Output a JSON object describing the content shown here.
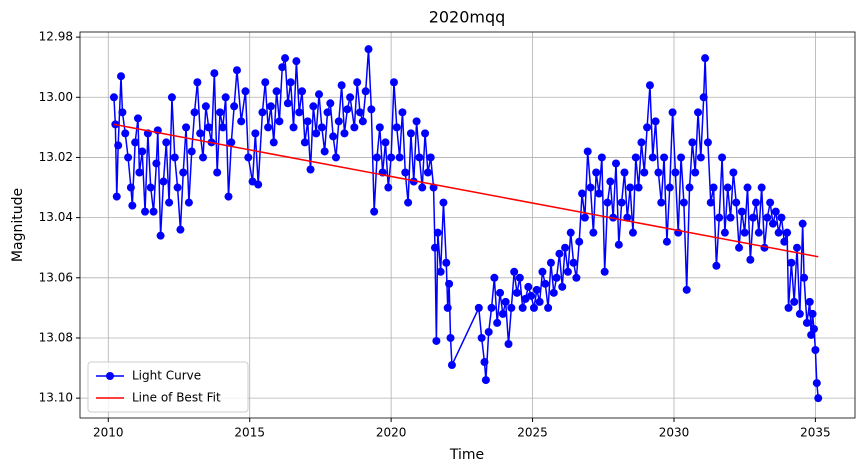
{
  "chart_data": {
    "type": "line",
    "title": "2020mqq",
    "x_label": "Time",
    "y_label": "Magnitude",
    "xlim": [
      2009.0,
      2036.4
    ],
    "xticks": [
      2010,
      2015,
      2020,
      2025,
      2030,
      2035
    ],
    "ylim": [
      13.1066,
      12.9783
    ],
    "yticks": [
      12.98,
      {
        "value": 13,
        "label": "13.00"
      },
      13.02,
      13.04,
      13.06,
      13.08,
      {
        "value": 13.1,
        "label": "13.10"
      }
    ],
    "grid": true,
    "legend": "lower left",
    "series": [
      {
        "name": "Light Curve",
        "color": "#0000ff",
        "marker": "o",
        "x": [
          2010.2,
          2010.25,
          2010.3,
          2010.35,
          2010.45,
          2010.5,
          2010.6,
          2010.7,
          2010.8,
          2010.85,
          2010.95,
          2011.05,
          2011.1,
          2011.2,
          2011.3,
          2011.4,
          2011.5,
          2011.6,
          2011.7,
          2011.75,
          2011.85,
          2011.95,
          2012.05,
          2012.15,
          2012.25,
          2012.35,
          2012.45,
          2012.55,
          2012.65,
          2012.75,
          2012.85,
          2012.95,
          2013.05,
          2013.15,
          2013.25,
          2013.35,
          2013.45,
          2013.55,
          2013.65,
          2013.75,
          2013.85,
          2013.95,
          2014.05,
          2014.15,
          2014.25,
          2014.35,
          2014.45,
          2014.55,
          2014.7,
          2014.85,
          2014.95,
          2015.1,
          2015.2,
          2015.3,
          2015.45,
          2015.55,
          2015.65,
          2015.75,
          2015.85,
          2015.95,
          2016.05,
          2016.15,
          2016.25,
          2016.35,
          2016.45,
          2016.55,
          2016.65,
          2016.75,
          2016.85,
          2016.95,
          2017.05,
          2017.15,
          2017.25,
          2017.35,
          2017.45,
          2017.55,
          2017.65,
          2017.75,
          2017.85,
          2017.95,
          2018.05,
          2018.15,
          2018.25,
          2018.35,
          2018.45,
          2018.55,
          2018.7,
          2018.8,
          2018.9,
          2019.0,
          2019.1,
          2019.2,
          2019.3,
          2019.4,
          2019.5,
          2019.6,
          2019.7,
          2019.8,
          2019.9,
          2020.0,
          2020.1,
          2020.2,
          2020.3,
          2020.4,
          2020.5,
          2020.6,
          2020.7,
          2020.8,
          2020.9,
          2021.0,
          2021.1,
          2021.2,
          2021.3,
          2021.4,
          2021.5,
          2021.55,
          2021.6,
          2021.65,
          2021.75,
          2021.85,
          2021.95,
          2022.0,
          2022.05,
          2022.1,
          2022.15,
          2023.1,
          2023.2,
          2023.3,
          2023.35,
          2023.45,
          2023.55,
          2023.65,
          2023.75,
          2023.85,
          2023.95,
          2024.05,
          2024.15,
          2024.25,
          2024.35,
          2024.45,
          2024.55,
          2024.65,
          2024.75,
          2024.85,
          2024.95,
          2025.05,
          2025.15,
          2025.25,
          2025.35,
          2025.45,
          2025.55,
          2025.65,
          2025.75,
          2025.85,
          2025.95,
          2026.05,
          2026.15,
          2026.25,
          2026.35,
          2026.45,
          2026.55,
          2026.65,
          2026.75,
          2026.85,
          2026.95,
          2027.05,
          2027.15,
          2027.25,
          2027.35,
          2027.45,
          2027.55,
          2027.65,
          2027.75,
          2027.85,
          2027.95,
          2028.05,
          2028.15,
          2028.25,
          2028.35,
          2028.45,
          2028.55,
          2028.65,
          2028.75,
          2028.85,
          2028.95,
          2029.05,
          2029.15,
          2029.25,
          2029.35,
          2029.45,
          2029.55,
          2029.65,
          2029.75,
          2029.85,
          2029.95,
          2030.05,
          2030.15,
          2030.25,
          2030.35,
          2030.45,
          2030.55,
          2030.65,
          2030.75,
          2030.85,
          2030.95,
          2031.05,
          2031.1,
          2031.2,
          2031.3,
          2031.4,
          2031.5,
          2031.6,
          2031.7,
          2031.8,
          2031.9,
          2032.0,
          2032.1,
          2032.2,
          2032.3,
          2032.4,
          2032.5,
          2032.6,
          2032.7,
          2032.8,
          2032.9,
          2033.0,
          2033.1,
          2033.2,
          2033.3,
          2033.4,
          2033.5,
          2033.6,
          2033.7,
          2033.8,
          2033.9,
          2034.0,
          2034.05,
          2034.15,
          2034.25,
          2034.35,
          2034.45,
          2034.55,
          2034.6,
          2034.7,
          2034.8,
          2034.85,
          2034.9,
          2034.95,
          2035.0,
          2035.05,
          2035.1
        ],
        "values": [
          13.0,
          13.009,
          13.033,
          13.016,
          12.993,
          13.005,
          13.012,
          13.02,
          13.03,
          13.036,
          13.015,
          13.007,
          13.025,
          13.018,
          13.038,
          13.012,
          13.03,
          13.038,
          13.022,
          13.011,
          13.046,
          13.028,
          13.015,
          13.035,
          13.0,
          13.02,
          13.03,
          13.044,
          13.025,
          13.01,
          13.035,
          13.018,
          13.005,
          12.995,
          13.012,
          13.02,
          13.003,
          13.01,
          13.015,
          12.992,
          13.025,
          13.005,
          13.01,
          13.0,
          13.033,
          13.015,
          13.003,
          12.991,
          13.008,
          12.998,
          13.02,
          13.028,
          13.012,
          13.029,
          13.005,
          12.995,
          13.01,
          13.003,
          13.015,
          12.998,
          13.008,
          12.99,
          12.987,
          13.002,
          12.995,
          13.01,
          12.988,
          13.005,
          12.998,
          13.015,
          13.008,
          13.024,
          13.003,
          13.012,
          12.999,
          13.01,
          13.018,
          13.005,
          13.002,
          13.013,
          13.02,
          13.008,
          12.996,
          13.012,
          13.004,
          13.0,
          13.01,
          12.995,
          13.005,
          13.008,
          12.998,
          12.984,
          13.004,
          13.038,
          13.02,
          13.01,
          13.025,
          13.015,
          13.03,
          13.02,
          12.995,
          13.01,
          13.02,
          13.005,
          13.025,
          13.035,
          13.012,
          13.028,
          13.008,
          13.02,
          13.03,
          13.012,
          13.025,
          13.02,
          13.03,
          13.05,
          13.081,
          13.045,
          13.058,
          13.035,
          13.055,
          13.07,
          13.062,
          13.08,
          13.089,
          13.07,
          13.08,
          13.088,
          13.094,
          13.078,
          13.07,
          13.06,
          13.075,
          13.065,
          13.072,
          13.068,
          13.082,
          13.07,
          13.058,
          13.065,
          13.06,
          13.07,
          13.067,
          13.063,
          13.066,
          13.07,
          13.064,
          13.068,
          13.058,
          13.062,
          13.07,
          13.055,
          13.065,
          13.06,
          13.052,
          13.063,
          13.05,
          13.058,
          13.045,
          13.055,
          13.06,
          13.048,
          13.032,
          13.04,
          13.018,
          13.03,
          13.045,
          13.025,
          13.032,
          13.02,
          13.058,
          13.035,
          13.028,
          13.04,
          13.022,
          13.049,
          13.035,
          13.025,
          13.04,
          13.03,
          13.045,
          13.02,
          13.03,
          13.015,
          13.025,
          13.01,
          12.996,
          13.02,
          13.008,
          13.025,
          13.035,
          13.02,
          13.048,
          13.03,
          13.005,
          13.025,
          13.045,
          13.02,
          13.035,
          13.064,
          13.03,
          13.015,
          13.025,
          13.005,
          13.02,
          13.0,
          12.987,
          13.015,
          13.035,
          13.03,
          13.056,
          13.04,
          13.02,
          13.045,
          13.03,
          13.04,
          13.025,
          13.035,
          13.05,
          13.038,
          13.045,
          13.03,
          13.054,
          13.04,
          13.035,
          13.045,
          13.03,
          13.05,
          13.04,
          13.035,
          13.042,
          13.038,
          13.045,
          13.04,
          13.048,
          13.045,
          13.07,
          13.055,
          13.068,
          13.05,
          13.072,
          13.042,
          13.06,
          13.075,
          13.068,
          13.079,
          13.072,
          13.077,
          13.084,
          13.095,
          13.1
        ]
      },
      {
        "name": "Line of Best Fit",
        "color": "#ff0000",
        "x": [
          2010.2,
          2035.1
        ],
        "values": [
          13.009,
          13.053
        ]
      }
    ]
  }
}
